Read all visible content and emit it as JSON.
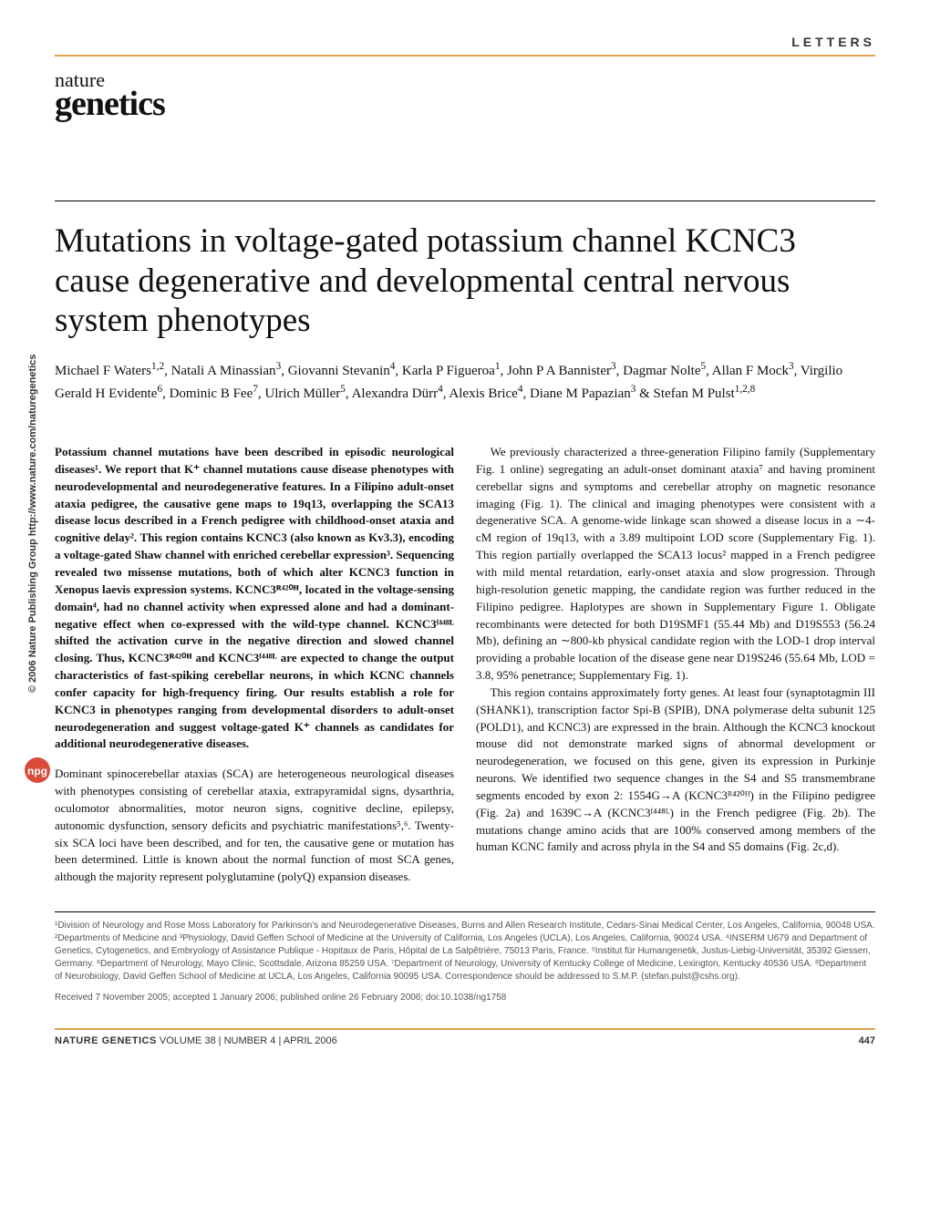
{
  "header": {
    "section_label": "LETTERS",
    "logo_top": "nature",
    "logo_bottom": "genetics"
  },
  "colors": {
    "rule_accent": "#e0a050",
    "text": "#111111",
    "muted": "#555555"
  },
  "article": {
    "title": "Mutations in voltage-gated potassium channel KCNC3 cause degenerative and developmental central nervous system phenotypes",
    "authors_html": "Michael F Waters<sup>1,2</sup>, Natali A Minassian<sup>3</sup>, Giovanni Stevanin<sup>4</sup>, Karla P Figueroa<sup>1</sup>, John P A Bannister<sup>3</sup>, Dagmar Nolte<sup>5</sup>, Allan F Mock<sup>3</sup>, Virgilio Gerald H Evidente<sup>6</sup>, Dominic B Fee<sup>7</sup>, Ulrich Müller<sup>5</sup>, Alexandra Dürr<sup>4</sup>, Alexis Brice<sup>4</sup>, Diane M Papazian<sup>3</sup> & Stefan M Pulst<sup>1,2,8</sup>",
    "abstract": "Potassium channel mutations have been described in episodic neurological diseases¹. We report that K⁺ channel mutations cause disease phenotypes with neurodevelopmental and neurodegenerative features. In a Filipino adult-onset ataxia pedigree, the causative gene maps to 19q13, overlapping the SCA13 disease locus described in a French pedigree with childhood-onset ataxia and cognitive delay². This region contains KCNC3 (also known as Kv3.3), encoding a voltage-gated Shaw channel with enriched cerebellar expression³. Sequencing revealed two missense mutations, both of which alter KCNC3 function in Xenopus laevis expression systems. KCNC3ᴿ⁴²⁰ᴴ, located in the voltage-sensing domain⁴, had no channel activity when expressed alone and had a dominant-negative effect when co-expressed with the wild-type channel. KCNC3ᶠ⁴⁴⁸ᴸ shifted the activation curve in the negative direction and slowed channel closing. Thus, KCNC3ᴿ⁴²⁰ᴴ and KCNC3ᶠ⁴⁴⁸ᴸ are expected to change the output characteristics of fast-spiking cerebellar neurons, in which KCNC channels confer capacity for high-frequency firing. Our results establish a role for KCNC3 in phenotypes ranging from developmental disorders to adult-onset neurodegeneration and suggest voltage-gated K⁺ channels as candidates for additional neurodegenerative diseases.",
    "body_paragraphs": [
      "Dominant spinocerebellar ataxias (SCA) are heterogeneous neurological diseases with phenotypes consisting of cerebellar ataxia, extrapyramidal signs, dysarthria, oculomotor abnormalities, motor neuron signs, cognitive decline, epilepsy, autonomic dysfunction, sensory deficits and psychiatric manifestations⁵,⁶. Twenty-six SCA loci have been described, and for ten, the causative gene or mutation has been determined. Little is known about the normal function of most SCA genes, although the majority represent polyglutamine (polyQ) expansion diseases.",
      "We previously characterized a three-generation Filipino family (Supplementary Fig. 1 online) segregating an adult-onset dominant ataxia⁷ and having prominent cerebellar signs and symptoms and cerebellar atrophy on magnetic resonance imaging (Fig. 1). The clinical and imaging phenotypes were consistent with a degenerative SCA. A genome-wide linkage scan showed a disease locus in a ∼4-cM region of 19q13, with a 3.89 multipoint LOD score (Supplementary Fig. 1). This region partially overlapped the SCA13 locus² mapped in a French pedigree with mild mental retardation, early-onset ataxia and slow progression. Through high-resolution genetic mapping, the candidate region was further reduced in the Filipino pedigree. Haplotypes are shown in Supplementary Figure 1. Obligate recombinants were detected for both D19SMF1 (55.44 Mb) and D19S553 (56.24 Mb), defining an ∼800-kb physical candidate region with the LOD-1 drop interval providing a probable location of the disease gene near D19S246 (55.64 Mb, LOD = 3.8, 95% penetrance; Supplementary Fig. 1).",
      "This region contains approximately forty genes. At least four (synaptotagmin III (SHANK1), transcription factor Spi-B (SPIB), DNA polymerase delta subunit 125 (POLD1), and KCNC3) are expressed in the brain. Although the KCNC3 knockout mouse did not demonstrate marked signs of abnormal development or neurodegeneration, we focused on this gene, given its expression in Purkinje neurons. We identified two sequence changes in the S4 and S5 transmembrane segments encoded by exon 2: 1554G→A (KCNC3ᴿ⁴²⁰ᴴ) in the Filipino pedigree (Fig. 2a) and 1639C→A (KCNC3ᶠ⁴⁴⁸ᴸ) in the French pedigree (Fig. 2b). The mutations change amino acids that are 100% conserved among members of the human KCNC family and across phyla in the S4 and S5 domains (Fig. 2c,d)."
    ],
    "affiliations": "¹Division of Neurology and Rose Moss Laboratory for Parkinson's and Neurodegenerative Diseases, Burns and Allen Research Institute, Cedars-Sinai Medical Center, Los Angeles, California, 90048 USA. ²Departments of Medicine and ³Physiology, David Geffen School of Medicine at the University of California, Los Angeles (UCLA), Los Angeles, California, 90024 USA. ⁴INSERM U679 and Department of Genetics, Cytogenetics, and Embryology of Assistance Publique - Hopitaux de Paris, Hôpital de La Salpêtrière, 75013 Paris, France. ⁵Institut für Humangenetik, Justus-Liebig-Universität, 35392 Giessen, Germany. ⁶Department of Neurology, Mayo Clinic, Scottsdale, Arizona 85259 USA. ⁷Department of Neurology, University of Kentucky College of Medicine, Lexington, Kentucky 40536 USA. ⁸Department of Neurobiology, David Geffen School of Medicine at UCLA, Los Angeles, California 90095 USA. Correspondence should be addressed to S.M.P. (stefan.pulst@cshs.org).",
    "received": "Received 7 November 2005; accepted 1 January 2006; published online 26 February 2006; doi:10.1038/ng1758"
  },
  "sidebar": {
    "copyright": "© 2006 Nature Publishing Group  http://www.nature.com/naturegenetics",
    "badge_text": "npg"
  },
  "footer": {
    "journal": "NATURE GENETICS",
    "issue": " VOLUME 38 | NUMBER 4 | APRIL 2006",
    "page_number": "447"
  }
}
